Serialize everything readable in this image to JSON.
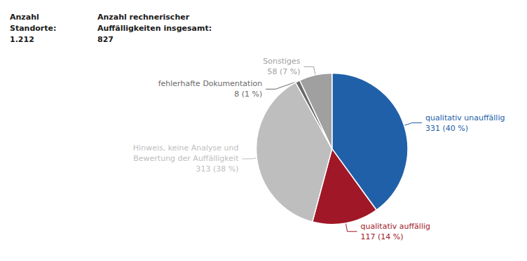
{
  "chart_data": {
    "type": "pie",
    "annotations": [
      "Anzahl\nStandorte:\n1.212",
      "Anzahl rechnerischer\nAuffälligkeiten insgesamt:\n827"
    ],
    "categories": [
      "qualitativ unauffällig",
      "qualitativ auffällig",
      "Hinweis, keine Analyse und\nBewertung der Auffälligkeit",
      "fehlerhafte Dokumentation",
      "Sonstiges"
    ],
    "values": [
      331,
      117,
      313,
      8,
      58
    ],
    "value_labels": [
      "331 (40 %)",
      "117 (14 %)",
      "313 (38 %)",
      "8 (1 %)",
      "58 (7 %)"
    ],
    "colors": [
      "#2060a8",
      "#a01828",
      "#bebebe",
      "#6a6a6a",
      "#a0a0a0"
    ],
    "data_labels": true
  }
}
